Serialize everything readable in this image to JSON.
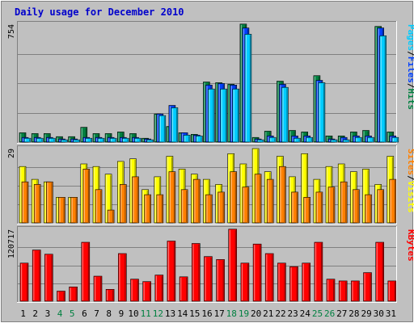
{
  "chart_data": {
    "type": "bar",
    "title": "Daily usage for December 2010",
    "categories": [
      "1",
      "2",
      "3",
      "4",
      "5",
      "6",
      "7",
      "8",
      "9",
      "10",
      "11",
      "12",
      "13",
      "14",
      "15",
      "16",
      "17",
      "18",
      "19",
      "20",
      "21",
      "22",
      "23",
      "24",
      "25",
      "26",
      "27",
      "28",
      "29",
      "30",
      "31"
    ],
    "weekend_days": [
      "4",
      "5",
      "11",
      "12",
      "18",
      "19",
      "25",
      "26"
    ],
    "panels": [
      {
        "name": "hits-panel",
        "ymax_label": "754",
        "ymax": 754,
        "legend": [
          "Pages",
          "/",
          "Files",
          "/",
          "Hits"
        ],
        "legend_colors": [
          "#00ccff",
          "#000000",
          "#0040ff",
          "#000000",
          "#008040"
        ],
        "series": [
          {
            "name": "Hits",
            "color": "#008040",
            "values": [
              60,
              55,
              55,
              35,
              35,
              95,
              55,
              55,
              65,
              55,
              25,
              180,
              100,
              60,
              50,
              385,
              380,
              370,
              755,
              30,
              70,
              390,
              75,
              65,
              425,
              40,
              40,
              65,
              75,
              740,
              65
            ]
          },
          {
            "name": "Files",
            "color": "#0040ff",
            "values": [
              30,
              30,
              30,
              20,
              20,
              30,
              30,
              30,
              30,
              30,
              20,
              180,
              235,
              60,
              45,
              365,
              375,
              365,
              730,
              20,
              40,
              370,
              40,
              40,
              395,
              20,
              30,
              40,
              40,
              730,
              40
            ]
          },
          {
            "name": "Pages",
            "color": "#00ccff",
            "values": [
              25,
              25,
              25,
              15,
              15,
              25,
              25,
              25,
              25,
              25,
              15,
              170,
              220,
              45,
              40,
              340,
              340,
              340,
              690,
              15,
              30,
              350,
              25,
              30,
              380,
              15,
              15,
              30,
              30,
              680,
              30
            ]
          }
        ]
      },
      {
        "name": "visits-panel",
        "ymax_label": "29",
        "ymax": 29,
        "legend": [
          "Sites",
          "/",
          "Visits"
        ],
        "legend_colors": [
          "#ff8000",
          "#000000",
          "#ffff00"
        ],
        "series": [
          {
            "name": "Visits",
            "color": "#ffff00",
            "values": [
              22,
              17,
              16,
              10,
              10,
              23,
              22,
              19,
              24,
              25,
              13,
              18,
              26,
              21,
              19,
              17,
              15,
              27,
              23,
              29,
              20,
              26,
              18,
              27,
              17,
              22,
              23,
              20,
              21,
              15,
              26
            ]
          },
          {
            "name": "Sites",
            "color": "#ff8000",
            "values": [
              16,
              15,
              16,
              10,
              10,
              21,
              13,
              5,
              15,
              18,
              11,
              11,
              20,
              13,
              17,
              11,
              12,
              20,
              14,
              19,
              17,
              22,
              12,
              10,
              12,
              14,
              16,
              13,
              11,
              13,
              17
            ]
          }
        ]
      },
      {
        "name": "kbytes-panel",
        "ymax_label": "120717",
        "ymax": 120717,
        "legend": [
          "KBytes"
        ],
        "legend_colors": [
          "#ff0000"
        ],
        "series": [
          {
            "name": "KBytes",
            "color": "#ff0000",
            "values": [
              64000,
              86000,
              79000,
              17000,
              24000,
              99000,
              42000,
              20000,
              80000,
              37000,
              33000,
              44000,
              101000,
              41000,
              97000,
              75000,
              70000,
              121000,
              64000,
              96000,
              80000,
              64000,
              58000,
              64000,
              99000,
              37000,
              34000,
              34000,
              48000,
              99000,
              34000
            ]
          }
        ]
      }
    ]
  },
  "colors": {
    "weekday_label": "#000000",
    "weekend_label": "#008040",
    "panel_bg": "#c0c0c0",
    "grid": "#808080",
    "title": "#0000cc"
  }
}
